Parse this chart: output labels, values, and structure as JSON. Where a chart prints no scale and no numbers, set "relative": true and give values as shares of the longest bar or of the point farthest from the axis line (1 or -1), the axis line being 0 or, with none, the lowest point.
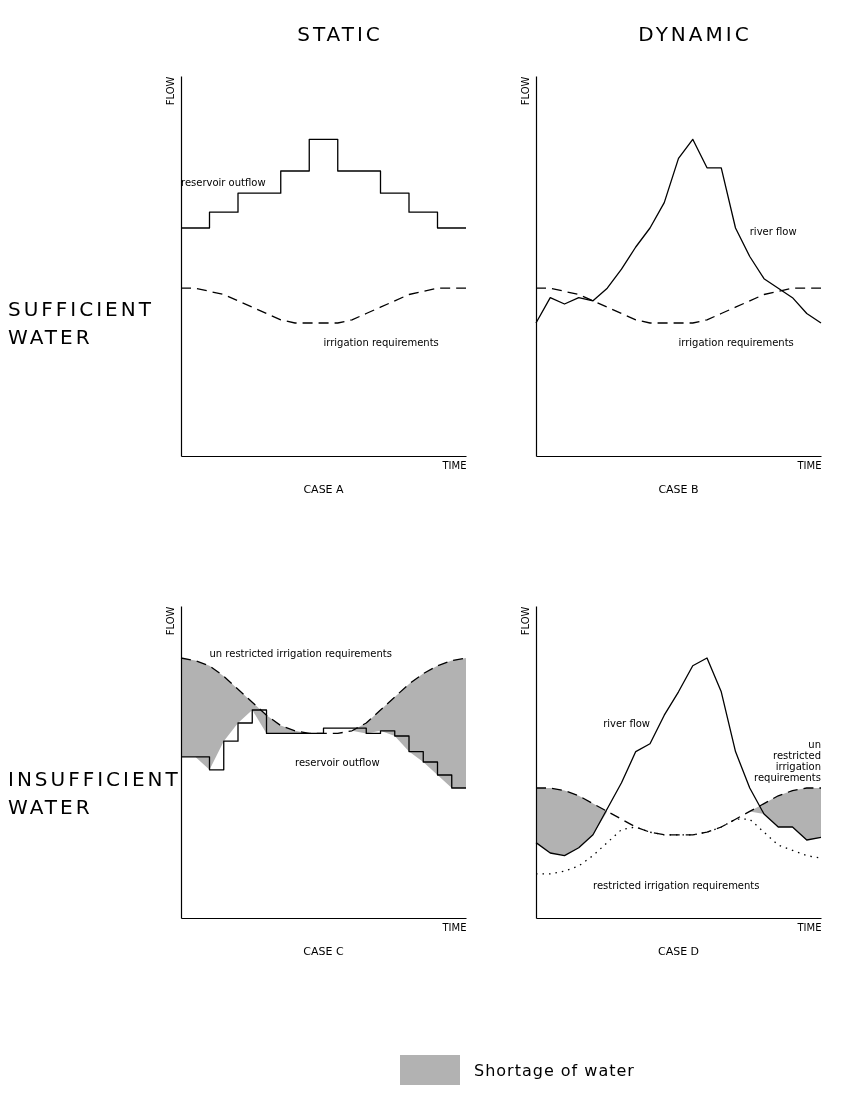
{
  "chart_data": [
    {
      "type": "line",
      "title": "CASE A",
      "xlabel": "TIME",
      "ylabel": "FLOW",
      "relative": true,
      "annotations": [
        "STATIC",
        "SUFFICIENT WATER"
      ],
      "categories": [
        null,
        null,
        null,
        null,
        null,
        null,
        null,
        null,
        null,
        null,
        null,
        null,
        null,
        null,
        null,
        null,
        null,
        null,
        null,
        null,
        null
      ],
      "series": [
        {
          "name": "reservoir outflow",
          "type": "step",
          "color": "#000000",
          "values": [
            0.72,
            0.72,
            0.77,
            0.77,
            0.83,
            0.83,
            0.83,
            0.9,
            0.9,
            1.0,
            1.0,
            0.9,
            0.9,
            0.9,
            0.83,
            0.83,
            0.77,
            0.77,
            0.72,
            0.72,
            0.72
          ]
        },
        {
          "name": "irrigation requirements",
          "line_style": "dashed",
          "color": "#000000",
          "values": [
            0.53,
            0.53,
            0.52,
            0.51,
            0.49,
            0.47,
            0.45,
            0.43,
            0.42,
            0.42,
            0.42,
            0.42,
            0.43,
            0.45,
            0.47,
            0.49,
            0.51,
            0.52,
            0.53,
            0.53,
            0.53
          ]
        }
      ]
    },
    {
      "type": "line",
      "title": "CASE B",
      "xlabel": "TIME",
      "ylabel": "FLOW",
      "relative": true,
      "annotations": [
        "DYNAMIC"
      ],
      "categories": [
        null,
        null,
        null,
        null,
        null,
        null,
        null,
        null,
        null,
        null,
        null,
        null,
        null,
        null,
        null,
        null,
        null,
        null,
        null,
        null,
        null
      ],
      "series": [
        {
          "name": "river flow",
          "color": "#000000",
          "values": [
            0.42,
            0.5,
            0.48,
            0.5,
            0.49,
            0.53,
            0.59,
            0.66,
            0.72,
            0.8,
            0.94,
            1.0,
            0.91,
            0.91,
            0.72,
            0.63,
            0.56,
            0.53,
            0.5,
            0.45,
            0.42
          ]
        },
        {
          "name": "irrigation requirements",
          "line_style": "dashed",
          "color": "#000000",
          "values": [
            0.53,
            0.53,
            0.52,
            0.51,
            0.49,
            0.47,
            0.45,
            0.43,
            0.42,
            0.42,
            0.42,
            0.42,
            0.43,
            0.45,
            0.47,
            0.49,
            0.51,
            0.52,
            0.53,
            0.53,
            0.53
          ]
        }
      ]
    },
    {
      "type": "line",
      "title": "CASE C",
      "xlabel": "TIME",
      "ylabel": "FLOW",
      "relative": true,
      "annotations": [
        "INSUFFICIENT WATER"
      ],
      "categories": [
        null,
        null,
        null,
        null,
        null,
        null,
        null,
        null,
        null,
        null,
        null,
        null,
        null,
        null,
        null,
        null,
        null,
        null,
        null,
        null,
        null
      ],
      "series": [
        {
          "name": "un restricted irrigation requirements",
          "line_style": "dashed",
          "color": "#000000",
          "values": [
            1.0,
            0.99,
            0.97,
            0.93,
            0.88,
            0.83,
            0.78,
            0.74,
            0.72,
            0.71,
            0.71,
            0.71,
            0.72,
            0.75,
            0.8,
            0.85,
            0.9,
            0.94,
            0.97,
            0.99,
            1.0
          ],
          "lower": [
            0.62,
            0.62,
            0.57,
            0.68,
            0.75,
            0.8,
            0.71,
            0.71,
            0.71,
            0.71,
            0.71,
            0.71,
            0.72,
            0.71,
            0.72,
            0.7,
            0.64,
            0.6,
            0.55,
            0.5,
            0.5
          ],
          "upper": [
            1.0,
            0.99,
            0.97,
            0.93,
            0.88,
            0.83,
            0.78,
            0.74,
            0.72,
            0.71,
            0.71,
            0.71,
            0.72,
            0.75,
            0.8,
            0.85,
            0.9,
            0.94,
            0.97,
            0.99,
            1.0
          ]
        },
        {
          "name": "reservoir outflow",
          "type": "step",
          "color": "#000000",
          "values": [
            0.62,
            0.62,
            0.57,
            0.68,
            0.75,
            0.8,
            0.71,
            0.71,
            0.71,
            0.71,
            0.73,
            0.73,
            0.73,
            0.71,
            0.72,
            0.7,
            0.64,
            0.6,
            0.55,
            0.5,
            0.5
          ]
        }
      ]
    },
    {
      "type": "line",
      "title": "CASE D",
      "xlabel": "TIME",
      "ylabel": "FLOW",
      "relative": true,
      "annotations": [
        "Shortage of water"
      ],
      "categories": [
        null,
        null,
        null,
        null,
        null,
        null,
        null,
        null,
        null,
        null,
        null,
        null,
        null,
        null,
        null,
        null,
        null,
        null,
        null,
        null,
        null
      ],
      "series": [
        {
          "name": "river flow",
          "color": "#000000",
          "values": [
            0.29,
            0.25,
            0.24,
            0.27,
            0.32,
            0.42,
            0.52,
            0.64,
            0.67,
            0.78,
            0.87,
            0.97,
            1.0,
            0.87,
            0.64,
            0.5,
            0.4,
            0.35,
            0.35,
            0.3,
            0.31
          ]
        },
        {
          "name": "un restricted irrigation requirements",
          "line_style": "dashed",
          "color": "#000000",
          "values": [
            0.5,
            0.5,
            0.49,
            0.47,
            0.44,
            0.41,
            0.38,
            0.35,
            0.33,
            0.32,
            0.32,
            0.32,
            0.33,
            0.35,
            0.38,
            0.41,
            0.44,
            0.47,
            0.49,
            0.5,
            0.5
          ],
          "lower": [
            0.29,
            0.25,
            0.24,
            0.27,
            0.32,
            0.41,
            0.38,
            0.35,
            0.33,
            0.32,
            0.32,
            0.32,
            0.33,
            0.35,
            0.38,
            0.41,
            0.4,
            0.35,
            0.35,
            0.3,
            0.31
          ],
          "upper": [
            0.5,
            0.5,
            0.49,
            0.47,
            0.44,
            0.41,
            0.38,
            0.35,
            0.33,
            0.32,
            0.32,
            0.32,
            0.33,
            0.35,
            0.38,
            0.41,
            0.44,
            0.47,
            0.49,
            0.5,
            0.5
          ]
        },
        {
          "name": "restricted irrigation requirements",
          "line_style": "dotted",
          "color": "#000000",
          "values": [
            0.17,
            0.17,
            0.18,
            0.2,
            0.24,
            0.29,
            0.34,
            0.35,
            0.33,
            0.32,
            0.32,
            0.32,
            0.33,
            0.35,
            0.38,
            0.38,
            0.33,
            0.28,
            0.26,
            0.24,
            0.23
          ]
        }
      ]
    }
  ]
}
